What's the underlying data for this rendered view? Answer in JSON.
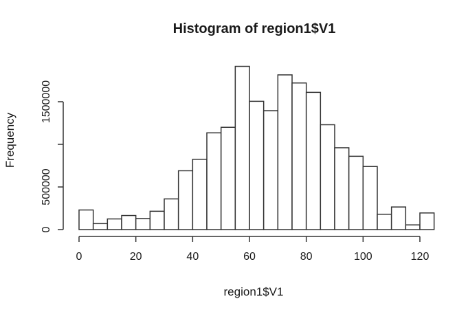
{
  "chart_data": {
    "type": "bar",
    "subtype": "histogram",
    "title": "Histogram of region1$V1",
    "xlabel": "region1$V1",
    "ylabel": "Frequency",
    "bin_width": 5,
    "bin_edges": [
      0,
      5,
      10,
      15,
      20,
      25,
      30,
      35,
      40,
      45,
      50,
      55,
      60,
      65,
      70,
      75,
      80,
      85,
      90,
      95,
      100,
      105,
      110,
      115,
      120,
      125
    ],
    "counts": [
      230000,
      70000,
      125000,
      165000,
      130000,
      215000,
      360000,
      690000,
      825000,
      1135000,
      1200000,
      1915000,
      1505000,
      1395000,
      1815000,
      1720000,
      1610000,
      1230000,
      960000,
      860000,
      740000,
      180000,
      265000,
      55000,
      195000
    ],
    "x_ticks": [
      0,
      20,
      40,
      60,
      80,
      100,
      120
    ],
    "x_tick_labels": [
      "0",
      "20",
      "40",
      "60",
      "80",
      "100",
      "120"
    ],
    "y_ticks": [
      0,
      500000,
      1000000,
      1500000
    ],
    "y_tick_labels": [
      "0",
      "500000",
      "",
      "1500000"
    ],
    "xlim": [
      0,
      125
    ],
    "ylim": [
      0,
      1500000
    ],
    "grid": false,
    "legend": false,
    "colors": {
      "background": "#ffffff",
      "bar_fill": "#ffffff",
      "bar_stroke": "#333333",
      "axis_stroke": "#333333",
      "text": "#1a1a1a"
    }
  }
}
